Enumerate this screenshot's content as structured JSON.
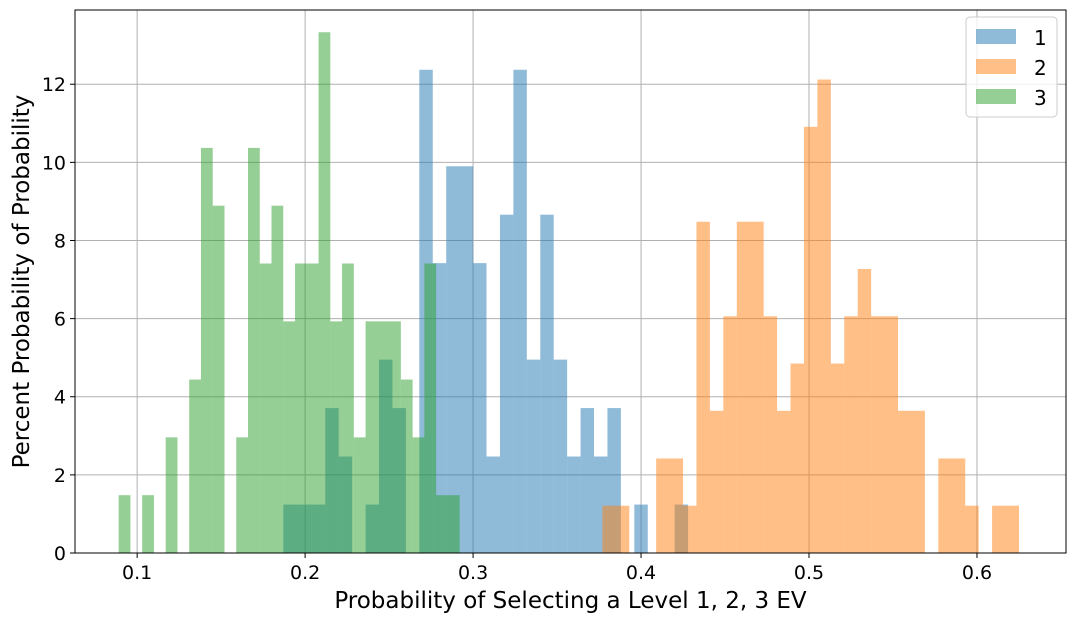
{
  "chart_data": {
    "type": "bar",
    "title": "",
    "xlabel": "Probability of Selecting a Level 1, 2, 3 EV",
    "ylabel": "Percent Probability of Probability",
    "xlim": [
      0.063,
      0.653
    ],
    "ylim": [
      0,
      13.9
    ],
    "xticks": [
      "0.1",
      "0.2",
      "0.3",
      "0.4",
      "0.5",
      "0.6"
    ],
    "yticks": [
      "0",
      "2",
      "4",
      "6",
      "8",
      "10",
      "12"
    ],
    "grid": true,
    "legend_position": "top-right",
    "bar_opacity": 0.5,
    "series": [
      {
        "name": "1",
        "color": "#1f77b4",
        "bins": [
          {
            "x0": 0.187,
            "x1": 0.196,
            "y": 1.24
          },
          {
            "x0": 0.196,
            "x1": 0.204,
            "y": 1.24
          },
          {
            "x0": 0.204,
            "x1": 0.212,
            "y": 1.24
          },
          {
            "x0": 0.212,
            "x1": 0.22,
            "y": 3.71
          },
          {
            "x0": 0.22,
            "x1": 0.228,
            "y": 2.47
          },
          {
            "x0": 0.236,
            "x1": 0.244,
            "y": 1.24
          },
          {
            "x0": 0.244,
            "x1": 0.252,
            "y": 4.95
          },
          {
            "x0": 0.252,
            "x1": 0.26,
            "y": 3.71
          },
          {
            "x0": 0.268,
            "x1": 0.276,
            "y": 12.37
          },
          {
            "x0": 0.276,
            "x1": 0.284,
            "y": 7.42
          },
          {
            "x0": 0.284,
            "x1": 0.3,
            "y": 9.9
          },
          {
            "x0": 0.3,
            "x1": 0.308,
            "y": 7.42
          },
          {
            "x0": 0.308,
            "x1": 0.316,
            "y": 2.47
          },
          {
            "x0": 0.316,
            "x1": 0.324,
            "y": 8.66
          },
          {
            "x0": 0.324,
            "x1": 0.332,
            "y": 12.37
          },
          {
            "x0": 0.332,
            "x1": 0.34,
            "y": 4.95
          },
          {
            "x0": 0.34,
            "x1": 0.348,
            "y": 8.66
          },
          {
            "x0": 0.348,
            "x1": 0.356,
            "y": 4.95
          },
          {
            "x0": 0.356,
            "x1": 0.364,
            "y": 2.47
          },
          {
            "x0": 0.364,
            "x1": 0.372,
            "y": 3.71
          },
          {
            "x0": 0.372,
            "x1": 0.38,
            "y": 2.47
          },
          {
            "x0": 0.38,
            "x1": 0.388,
            "y": 3.71
          },
          {
            "x0": 0.396,
            "x1": 0.404,
            "y": 1.24
          },
          {
            "x0": 0.42,
            "x1": 0.428,
            "y": 1.24
          }
        ]
      },
      {
        "name": "2",
        "color": "#ff7f0e",
        "bins": [
          {
            "x0": 0.377,
            "x1": 0.393,
            "y": 1.21
          },
          {
            "x0": 0.409,
            "x1": 0.425,
            "y": 2.42
          },
          {
            "x0": 0.425,
            "x1": 0.433,
            "y": 1.21
          },
          {
            "x0": 0.433,
            "x1": 0.441,
            "y": 8.48
          },
          {
            "x0": 0.441,
            "x1": 0.449,
            "y": 3.64
          },
          {
            "x0": 0.449,
            "x1": 0.457,
            "y": 6.06
          },
          {
            "x0": 0.457,
            "x1": 0.473,
            "y": 8.48
          },
          {
            "x0": 0.473,
            "x1": 0.481,
            "y": 6.06
          },
          {
            "x0": 0.481,
            "x1": 0.489,
            "y": 3.64
          },
          {
            "x0": 0.489,
            "x1": 0.497,
            "y": 4.85
          },
          {
            "x0": 0.497,
            "x1": 0.505,
            "y": 10.91
          },
          {
            "x0": 0.505,
            "x1": 0.513,
            "y": 12.12
          },
          {
            "x0": 0.513,
            "x1": 0.521,
            "y": 4.85
          },
          {
            "x0": 0.521,
            "x1": 0.529,
            "y": 6.06
          },
          {
            "x0": 0.529,
            "x1": 0.537,
            "y": 7.27
          },
          {
            "x0": 0.537,
            "x1": 0.553,
            "y": 6.06
          },
          {
            "x0": 0.553,
            "x1": 0.569,
            "y": 3.64
          },
          {
            "x0": 0.577,
            "x1": 0.593,
            "y": 2.42
          },
          {
            "x0": 0.593,
            "x1": 0.601,
            "y": 1.21
          },
          {
            "x0": 0.609,
            "x1": 0.625,
            "y": 1.21
          }
        ]
      },
      {
        "name": "3",
        "color": "#2ca02c",
        "bins": [
          {
            "x0": 0.089,
            "x1": 0.096,
            "y": 1.48
          },
          {
            "x0": 0.103,
            "x1": 0.11,
            "y": 1.48
          },
          {
            "x0": 0.117,
            "x1": 0.124,
            "y": 2.96
          },
          {
            "x0": 0.131,
            "x1": 0.138,
            "y": 4.44
          },
          {
            "x0": 0.138,
            "x1": 0.145,
            "y": 10.37
          },
          {
            "x0": 0.145,
            "x1": 0.152,
            "y": 8.89
          },
          {
            "x0": 0.159,
            "x1": 0.166,
            "y": 2.96
          },
          {
            "x0": 0.166,
            "x1": 0.173,
            "y": 10.37
          },
          {
            "x0": 0.173,
            "x1": 0.18,
            "y": 7.41
          },
          {
            "x0": 0.18,
            "x1": 0.187,
            "y": 8.89
          },
          {
            "x0": 0.187,
            "x1": 0.194,
            "y": 5.93
          },
          {
            "x0": 0.194,
            "x1": 0.208,
            "y": 7.41
          },
          {
            "x0": 0.208,
            "x1": 0.215,
            "y": 13.33
          },
          {
            "x0": 0.215,
            "x1": 0.222,
            "y": 5.93
          },
          {
            "x0": 0.222,
            "x1": 0.229,
            "y": 7.41
          },
          {
            "x0": 0.229,
            "x1": 0.236,
            "y": 2.96
          },
          {
            "x0": 0.236,
            "x1": 0.257,
            "y": 5.93
          },
          {
            "x0": 0.257,
            "x1": 0.264,
            "y": 4.44
          },
          {
            "x0": 0.264,
            "x1": 0.271,
            "y": 2.96
          },
          {
            "x0": 0.271,
            "x1": 0.278,
            "y": 7.41
          },
          {
            "x0": 0.278,
            "x1": 0.292,
            "y": 1.48
          }
        ]
      }
    ]
  }
}
